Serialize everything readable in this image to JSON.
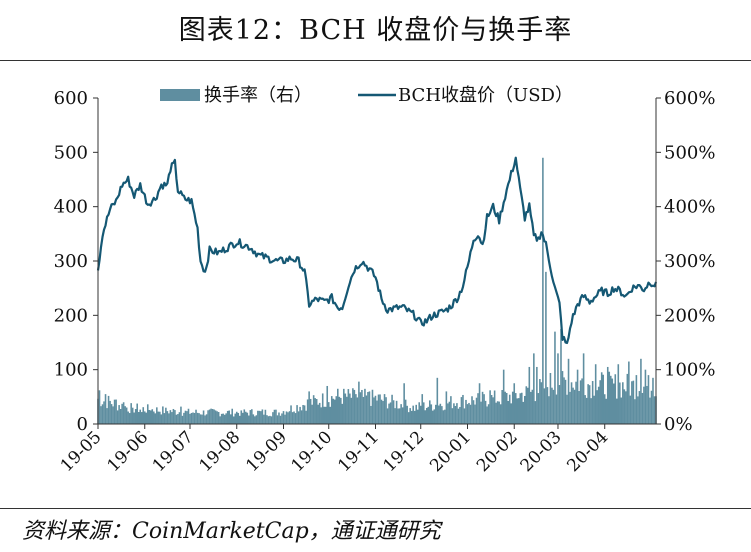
{
  "title": "图表12：BCH 收盘价与换手率",
  "source": "资料来源：CoinMarketCap，通证通研究",
  "colors": {
    "price_line": "#155874",
    "turnover_bar": "#5f8ea0",
    "axis": "#333333"
  },
  "chart_data": {
    "type": "bar+line",
    "legend": {
      "placement": "top",
      "items": [
        {
          "label": "换手率（右）",
          "kind": "bar"
        },
        {
          "label": "BCH收盘价（USD）",
          "kind": "line"
        }
      ]
    },
    "x_ticks": [
      "19-05",
      "19-06",
      "19-07",
      "19-08",
      "19-09",
      "19-10",
      "19-11",
      "19-12",
      "20-01",
      "20-02",
      "20-03",
      "20-04"
    ],
    "y_left": {
      "ylim": [
        0,
        600
      ],
      "ticks": [
        "0",
        "100",
        "200",
        "300",
        "400",
        "500",
        "600"
      ]
    },
    "y_right": {
      "ylim": [
        0,
        600
      ],
      "ticks": [
        "0%",
        "100%",
        "200%",
        "300%",
        "400%",
        "500%",
        "600%"
      ]
    },
    "grid": false,
    "days": 371,
    "price_series": {
      "name": "BCH收盘价（USD）",
      "keyframes": [
        [
          0,
          285
        ],
        [
          3,
          350
        ],
        [
          8,
          395
        ],
        [
          12,
          410
        ],
        [
          16,
          440
        ],
        [
          20,
          450
        ],
        [
          24,
          420
        ],
        [
          28,
          440
        ],
        [
          33,
          405
        ],
        [
          38,
          415
        ],
        [
          42,
          440
        ],
        [
          46,
          440
        ],
        [
          48,
          470
        ],
        [
          51,
          480
        ],
        [
          53,
          430
        ],
        [
          57,
          415
        ],
        [
          62,
          410
        ],
        [
          66,
          360
        ],
        [
          68,
          300
        ],
        [
          71,
          280
        ],
        [
          74,
          320
        ],
        [
          80,
          315
        ],
        [
          86,
          325
        ],
        [
          92,
          335
        ],
        [
          97,
          330
        ],
        [
          101,
          325
        ],
        [
          107,
          310
        ],
        [
          113,
          305
        ],
        [
          118,
          300
        ],
        [
          123,
          300
        ],
        [
          128,
          305
        ],
        [
          133,
          300
        ],
        [
          137,
          280
        ],
        [
          140,
          220
        ],
        [
          145,
          230
        ],
        [
          150,
          225
        ],
        [
          155,
          232
        ],
        [
          159,
          215
        ],
        [
          162,
          215
        ],
        [
          166,
          255
        ],
        [
          170,
          285
        ],
        [
          175,
          300
        ],
        [
          180,
          285
        ],
        [
          184,
          270
        ],
        [
          188,
          230
        ],
        [
          192,
          210
        ],
        [
          197,
          213
        ],
        [
          202,
          215
        ],
        [
          206,
          207
        ],
        [
          210,
          200
        ],
        [
          214,
          185
        ],
        [
          218,
          190
        ],
        [
          222,
          200
        ],
        [
          227,
          205
        ],
        [
          231,
          210
        ],
        [
          235,
          220
        ],
        [
          239,
          235
        ],
        [
          242,
          255
        ],
        [
          246,
          300
        ],
        [
          249,
          340
        ],
        [
          252,
          350
        ],
        [
          255,
          330
        ],
        [
          258,
          380
        ],
        [
          262,
          400
        ],
        [
          266,
          375
        ],
        [
          270,
          420
        ],
        [
          274,
          460
        ],
        [
          277,
          490
        ],
        [
          280,
          430
        ],
        [
          283,
          380
        ],
        [
          286,
          400
        ],
        [
          289,
          345
        ],
        [
          292,
          340
        ],
        [
          294,
          355
        ],
        [
          297,
          330
        ],
        [
          300,
          290
        ],
        [
          303,
          250
        ],
        [
          306,
          220
        ],
        [
          308,
          160
        ],
        [
          311,
          145
        ],
        [
          314,
          190
        ],
        [
          318,
          220
        ],
        [
          322,
          235
        ],
        [
          326,
          225
        ],
        [
          330,
          235
        ],
        [
          334,
          245
        ],
        [
          338,
          240
        ],
        [
          342,
          250
        ],
        [
          346,
          245
        ],
        [
          350,
          235
        ],
        [
          354,
          250
        ],
        [
          358,
          255
        ],
        [
          362,
          248
        ],
        [
          366,
          262
        ],
        [
          370,
          255
        ]
      ]
    },
    "turnover_series": {
      "name": "换手率（右）",
      "description_unit": "percent",
      "baseline_segments": [
        [
          0,
          55
        ],
        [
          20,
          35
        ],
        [
          60,
          25
        ],
        [
          120,
          25
        ],
        [
          139,
          45
        ],
        [
          160,
          60
        ],
        [
          185,
          55
        ],
        [
          210,
          35
        ],
        [
          240,
          50
        ],
        [
          265,
          55
        ],
        [
          290,
          70
        ],
        [
          305,
          95
        ],
        [
          330,
          85
        ],
        [
          370,
          80
        ]
      ],
      "spikes": [
        [
          1,
          62
        ],
        [
          5,
          55
        ],
        [
          12,
          45
        ],
        [
          17,
          40
        ],
        [
          23,
          30
        ],
        [
          29,
          22
        ],
        [
          35,
          25
        ],
        [
          45,
          30
        ],
        [
          55,
          32
        ],
        [
          67,
          20
        ],
        [
          95,
          25
        ],
        [
          140,
          60
        ],
        [
          152,
          70
        ],
        [
          160,
          50
        ],
        [
          171,
          55
        ],
        [
          173,
          78
        ],
        [
          180,
          60
        ],
        [
          203,
          75
        ],
        [
          215,
          55
        ],
        [
          225,
          85
        ],
        [
          231,
          60
        ],
        [
          253,
          75
        ],
        [
          260,
          62
        ],
        [
          269,
          100
        ],
        [
          276,
          75
        ],
        [
          286,
          105
        ],
        [
          289,
          130
        ],
        [
          291,
          105
        ],
        [
          295,
          490
        ],
        [
          297,
          280
        ],
        [
          303,
          170
        ],
        [
          305,
          130
        ],
        [
          307,
          175
        ],
        [
          312,
          120
        ],
        [
          318,
          100
        ],
        [
          322,
          130
        ],
        [
          330,
          110
        ],
        [
          338,
          105
        ],
        [
          345,
          110
        ],
        [
          352,
          115
        ],
        [
          357,
          90
        ],
        [
          360,
          120
        ],
        [
          363,
          100
        ],
        [
          368,
          85
        ]
      ]
    }
  }
}
